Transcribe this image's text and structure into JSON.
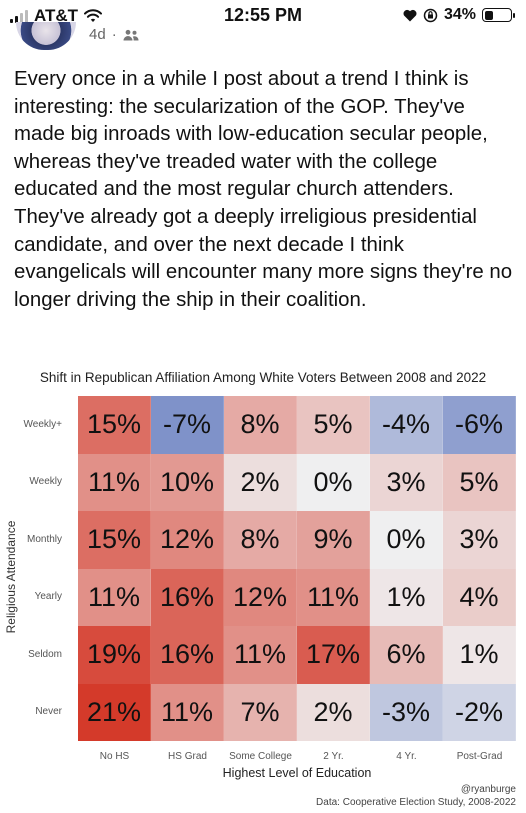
{
  "status_bar": {
    "carrier": "AT&T",
    "time": "12:55 PM",
    "battery": "34%",
    "battery_level": 0.34,
    "icons": [
      "signal-icon",
      "wifi-icon",
      "heart-icon",
      "orientation-lock-icon",
      "battery-icon"
    ]
  },
  "post": {
    "age": "4d",
    "separator": "·",
    "audience_icon": "friends-icon",
    "text": "Every once in a while I post about a trend I think is interesting: the secularization of the GOP. They've made big inroads with low-education secular people, whereas they've treaded water with the college educated and the most regular church attenders. They've already got a deeply irreligious presidential candidate, and over the next decade I think evangelicals will encounter many more signs they're no longer driving the ship in their coalition."
  },
  "chart_data": {
    "type": "heatmap",
    "title": "Shift in Republican Affiliation Among White Voters Between 2008 and 2022",
    "xlabel": "Highest Level of Education",
    "ylabel": "Religious Attendance",
    "columns": [
      "No HS",
      "HS Grad",
      "Some College",
      "2 Yr.",
      "4 Yr.",
      "Post-Grad"
    ],
    "rows": [
      "Weekly+",
      "Weekly",
      "Monthly",
      "Yearly",
      "Seldom",
      "Never"
    ],
    "values": [
      [
        15,
        -7,
        8,
        5,
        -4,
        -6
      ],
      [
        11,
        10,
        2,
        0,
        3,
        5
      ],
      [
        15,
        12,
        8,
        9,
        0,
        3
      ],
      [
        11,
        16,
        12,
        11,
        1,
        4
      ],
      [
        19,
        16,
        11,
        17,
        6,
        1
      ],
      [
        21,
        11,
        7,
        2,
        -3,
        -2
      ]
    ],
    "value_format": "percent",
    "colors": {
      "positive": "#d43a2a",
      "negative": "#7f92c9",
      "neutral": "#efeff0"
    },
    "credit": "@ryanburge",
    "source": "Data: Cooperative Election Study, 2008-2022"
  }
}
